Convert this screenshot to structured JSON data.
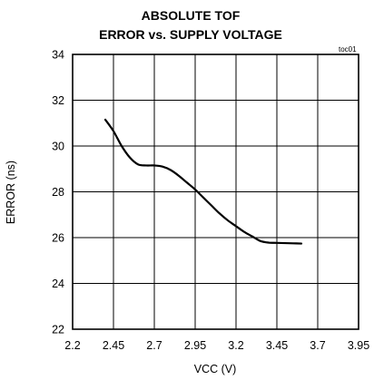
{
  "chart_data": {
    "type": "line",
    "title": [
      "ABSOLUTE TOF",
      "ERROR vs. SUPPLY VOLTAGE"
    ],
    "annotation": "toc01",
    "xlabel": "VCC (V)",
    "ylabel": "ERROR (ns)",
    "xlim": [
      2.2,
      3.95
    ],
    "ylim": [
      22,
      34
    ],
    "xticks": [
      "2.2",
      "2.45",
      "2.7",
      "2.95",
      "3.2",
      "3.45",
      "3.7",
      "3.95"
    ],
    "yticks": [
      "22",
      "24",
      "26",
      "28",
      "30",
      "32",
      "34"
    ],
    "grid": true,
    "colors": {
      "line": "#000000",
      "grid": "#000000",
      "background": "#ffffff"
    },
    "series": [
      {
        "x": [
          2.4,
          2.45,
          2.5,
          2.55,
          2.6,
          2.65,
          2.7,
          2.75,
          2.8,
          2.85,
          2.9,
          2.95,
          3.0,
          3.05,
          3.1,
          3.15,
          3.2,
          3.25,
          3.3,
          3.35,
          3.4,
          3.45,
          3.5,
          3.55,
          3.6
        ],
        "y": [
          31.15,
          30.65,
          30.0,
          29.5,
          29.2,
          29.15,
          29.15,
          29.1,
          28.95,
          28.7,
          28.4,
          28.1,
          27.75,
          27.4,
          27.05,
          26.75,
          26.5,
          26.25,
          26.05,
          25.85,
          25.78,
          25.77,
          25.76,
          25.75,
          25.74
        ]
      }
    ]
  }
}
